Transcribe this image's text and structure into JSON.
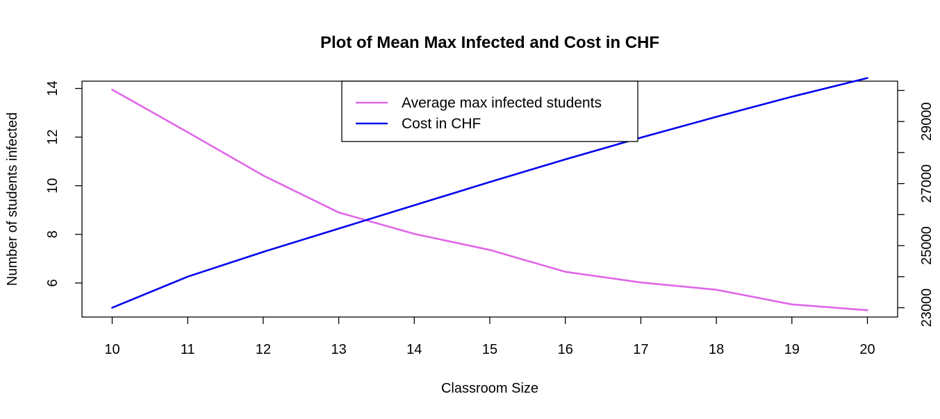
{
  "chart_data": {
    "type": "line",
    "title": "Plot of Mean Max Infected and Cost in CHF",
    "xlabel": "Classroom Size",
    "ylabel": "Number of students infected",
    "x": [
      10,
      11,
      12,
      13,
      14,
      15,
      16,
      17,
      18,
      19,
      20
    ],
    "xlim": [
      9.6,
      20.4
    ],
    "x_ticks": [
      "10",
      "11",
      "12",
      "13",
      "14",
      "15",
      "16",
      "17",
      "18",
      "19",
      "20"
    ],
    "ylim": [
      4.6,
      14.3
    ],
    "y_ticks": [
      "6",
      "8",
      "10",
      "12",
      "14"
    ],
    "y2lim": [
      22700,
      30300
    ],
    "y2_ticks": [
      "23000",
      "25000",
      "27000",
      "29000"
    ],
    "y2_minor_ticks": [
      24000,
      26000,
      28000,
      30000
    ],
    "grid": false,
    "legend_position": "top-center",
    "series": [
      {
        "name": "Average max infected students",
        "axis": "left",
        "color": "#E066E8",
        "values": [
          13.95,
          12.2,
          10.42,
          8.9,
          8.02,
          7.36,
          6.46,
          6.02,
          5.72,
          5.12,
          4.88
        ]
      },
      {
        "name": "Cost in CHF",
        "axis": "right",
        "color": "#0000EE",
        "values": [
          23000,
          24000,
          24800,
          25550,
          26300,
          27050,
          27780,
          28480,
          29150,
          29800,
          30400
        ]
      }
    ]
  }
}
